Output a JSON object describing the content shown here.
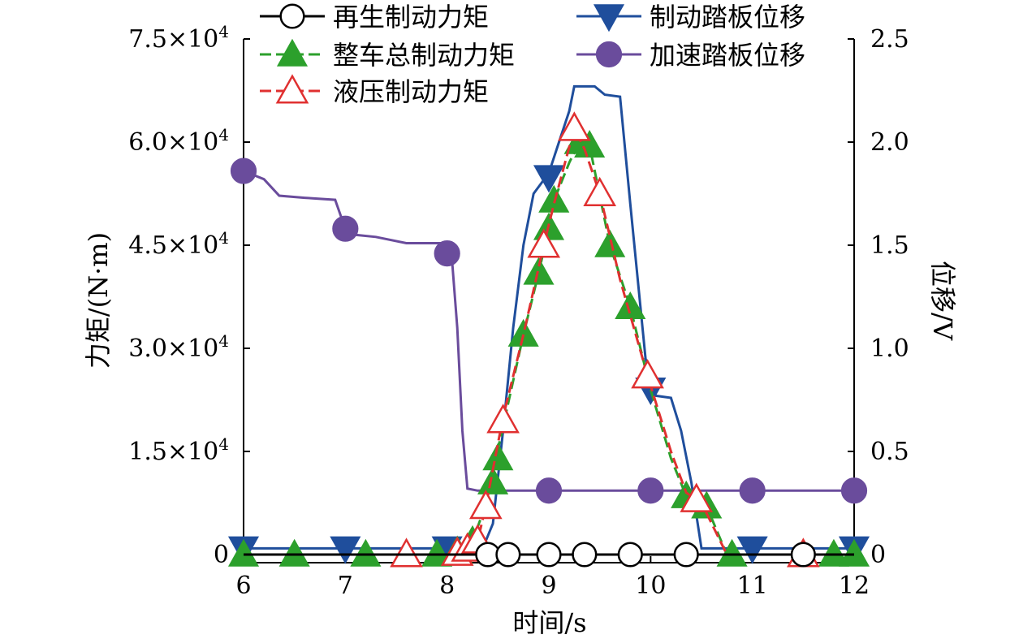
{
  "chart_data": {
    "type": "line",
    "xlabel": "时间/s",
    "ylabel_left": "力矩/(N·m)",
    "ylabel_right": "位移/V",
    "xlim": [
      6,
      12
    ],
    "ylim_left": [
      0,
      75000
    ],
    "ylim_right": [
      0,
      2.5
    ],
    "x_ticks": [
      6,
      7,
      8,
      9,
      10,
      11,
      12
    ],
    "x_tick_labels": [
      "6",
      "7",
      "8",
      "9",
      "10",
      "11",
      "12"
    ],
    "y_left_ticks": [
      0,
      15000,
      30000,
      45000,
      60000,
      75000
    ],
    "y_left_tick_labels": [
      {
        "base": "0",
        "exp": ""
      },
      {
        "base": "1.5×10",
        "exp": "4"
      },
      {
        "base": "3.0×10",
        "exp": "4"
      },
      {
        "base": "4.5×10",
        "exp": "4"
      },
      {
        "base": "6.0×10",
        "exp": "4"
      },
      {
        "base": "7.5×10",
        "exp": "4"
      }
    ],
    "y_right_ticks": [
      0,
      0.5,
      1.0,
      1.5,
      2.0,
      2.5
    ],
    "y_right_tick_labels": [
      "0",
      "0.5",
      "1.0",
      "1.5",
      "2.0",
      "2.5"
    ],
    "grid": false,
    "legend_position": "top",
    "series": [
      {
        "name": "再生制动力矩",
        "axis": "left",
        "color": "#000000",
        "marker": "open-circle",
        "points": [
          [
            6,
            0
          ],
          [
            7,
            0
          ],
          [
            8,
            0
          ],
          [
            8.5,
            0
          ],
          [
            9,
            0
          ],
          [
            9.5,
            0
          ],
          [
            10,
            0
          ],
          [
            10.5,
            0
          ],
          [
            11,
            0
          ],
          [
            11.5,
            0
          ],
          [
            12,
            0
          ]
        ],
        "markers": [
          [
            8.4,
            0
          ],
          [
            8.6,
            0
          ],
          [
            9.0,
            0
          ],
          [
            9.35,
            0
          ],
          [
            9.8,
            0
          ],
          [
            10.35,
            0
          ],
          [
            11.5,
            0
          ]
        ]
      },
      {
        "name": "整车总制动力矩",
        "axis": "left",
        "color": "#2ca02c",
        "marker": "filled-triangle-up",
        "points": [
          [
            6,
            0
          ],
          [
            8.0,
            0
          ],
          [
            8.1,
            500
          ],
          [
            8.25,
            2000
          ],
          [
            8.35,
            6000
          ],
          [
            8.45,
            12000
          ],
          [
            8.6,
            22000
          ],
          [
            8.75,
            32000
          ],
          [
            8.9,
            41000
          ],
          [
            9.0,
            47500
          ],
          [
            9.05,
            51500
          ],
          [
            9.2,
            57000
          ],
          [
            9.3,
            60000
          ],
          [
            9.4,
            59500
          ],
          [
            9.6,
            45000
          ],
          [
            9.8,
            36000
          ],
          [
            10.0,
            24000
          ],
          [
            10.2,
            14000
          ],
          [
            10.35,
            8500
          ],
          [
            10.55,
            7000
          ],
          [
            10.75,
            0
          ],
          [
            12,
            0
          ]
        ],
        "markers": [
          [
            6,
            0
          ],
          [
            6.5,
            0
          ],
          [
            7.2,
            0
          ],
          [
            7.9,
            0
          ],
          [
            8.1,
            500
          ],
          [
            8.25,
            2000
          ],
          [
            8.45,
            10500
          ],
          [
            8.5,
            14000
          ],
          [
            8.75,
            32000
          ],
          [
            8.9,
            41000
          ],
          [
            9.0,
            47500
          ],
          [
            9.05,
            51500
          ],
          [
            9.3,
            60000
          ],
          [
            9.4,
            59500
          ],
          [
            9.6,
            45000
          ],
          [
            9.8,
            36000
          ],
          [
            10.35,
            8500
          ],
          [
            10.55,
            7000
          ],
          [
            10.8,
            0
          ],
          [
            11.5,
            0
          ],
          [
            11.8,
            0
          ],
          [
            12,
            0
          ]
        ]
      },
      {
        "name": "液压制动力矩",
        "axis": "left",
        "color": "#e03030",
        "marker": "open-triangle-up",
        "points": [
          [
            6,
            0
          ],
          [
            8.1,
            0
          ],
          [
            8.2,
            800
          ],
          [
            8.3,
            2000
          ],
          [
            8.38,
            7000
          ],
          [
            8.55,
            20000
          ],
          [
            8.75,
            32000
          ],
          [
            8.95,
            45000
          ],
          [
            9.05,
            51000
          ],
          [
            9.25,
            62000
          ],
          [
            9.35,
            59000
          ],
          [
            9.5,
            52500
          ],
          [
            9.7,
            40000
          ],
          [
            9.97,
            26000
          ],
          [
            10.2,
            15000
          ],
          [
            10.35,
            9000
          ],
          [
            10.45,
            8000
          ],
          [
            10.55,
            6000
          ],
          [
            10.75,
            0
          ],
          [
            12,
            0
          ]
        ],
        "markers": [
          [
            7.6,
            0
          ],
          [
            8.1,
            200
          ],
          [
            8.2,
            800
          ],
          [
            8.3,
            2000
          ],
          [
            8.38,
            7000
          ],
          [
            8.55,
            19500
          ],
          [
            8.95,
            45000
          ],
          [
            9.25,
            62000
          ],
          [
            9.5,
            52500
          ],
          [
            9.97,
            26000
          ],
          [
            10.45,
            8000
          ],
          [
            11.5,
            0
          ]
        ]
      },
      {
        "name": "制动踏板位移",
        "axis": "right",
        "color": "#1f4e9c",
        "marker": "filled-triangle-down",
        "points": [
          [
            6,
            0.03
          ],
          [
            8.35,
            0.03
          ],
          [
            8.45,
            0.15
          ],
          [
            8.55,
            0.6
          ],
          [
            8.65,
            1.1
          ],
          [
            8.75,
            1.5
          ],
          [
            8.85,
            1.75
          ],
          [
            9.0,
            1.85
          ],
          [
            9.1,
            2.0
          ],
          [
            9.2,
            2.15
          ],
          [
            9.25,
            2.27
          ],
          [
            9.45,
            2.27
          ],
          [
            9.55,
            2.23
          ],
          [
            9.7,
            2.22
          ],
          [
            9.8,
            1.7
          ],
          [
            9.95,
            0.95
          ],
          [
            10.05,
            0.77
          ],
          [
            10.2,
            0.76
          ],
          [
            10.3,
            0.6
          ],
          [
            10.4,
            0.35
          ],
          [
            10.5,
            0.03
          ],
          [
            12,
            0.03
          ]
        ],
        "markers": [
          [
            6,
            0.03
          ],
          [
            7.0,
            0.03
          ],
          [
            8.0,
            0.03
          ],
          [
            9.0,
            1.83
          ],
          [
            10.0,
            0.8
          ],
          [
            11.0,
            0.03
          ],
          [
            12,
            0.03
          ]
        ]
      },
      {
        "name": "加速踏板位移",
        "axis": "right",
        "color": "#6a4c9c",
        "marker": "filled-circle",
        "points": [
          [
            6,
            1.86
          ],
          [
            6.2,
            1.82
          ],
          [
            6.35,
            1.74
          ],
          [
            6.6,
            1.73
          ],
          [
            6.9,
            1.72
          ],
          [
            7.0,
            1.58
          ],
          [
            7.1,
            1.55
          ],
          [
            7.3,
            1.54
          ],
          [
            7.6,
            1.51
          ],
          [
            7.95,
            1.51
          ],
          [
            8.0,
            1.46
          ],
          [
            8.05,
            1.42
          ],
          [
            8.1,
            1.1
          ],
          [
            8.15,
            0.6
          ],
          [
            8.2,
            0.32
          ],
          [
            8.3,
            0.31
          ],
          [
            12,
            0.31
          ]
        ],
        "markers": [
          [
            6,
            1.86
          ],
          [
            7.0,
            1.58
          ],
          [
            8.0,
            1.46
          ],
          [
            9.0,
            0.31
          ],
          [
            10.0,
            0.31
          ],
          [
            11.0,
            0.31
          ],
          [
            12,
            0.31
          ]
        ]
      }
    ]
  }
}
